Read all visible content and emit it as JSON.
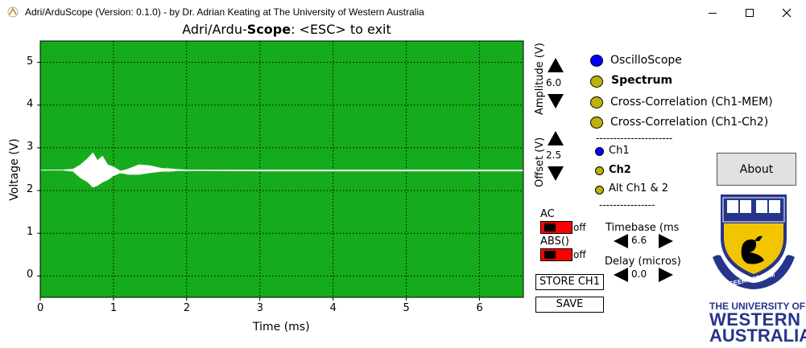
{
  "window": {
    "title": "Adri/ArduScope (Version: 0.1.0) - by Dr. Adrian Keating at The University of Western Australia",
    "minimize_icon": "minimize-icon",
    "maximize_icon": "maximize-icon",
    "close_icon": "close-icon"
  },
  "plot": {
    "title_pre": "Adri/Ardu-",
    "title_bold": "Scope",
    "title_post": ": <ESC> to exit",
    "xlabel": "Time (ms)",
    "ylabel": "Voltage (V)",
    "x_ticks": [
      "0",
      "1",
      "2",
      "3",
      "4",
      "5",
      "6"
    ],
    "y_ticks": [
      "0",
      "1",
      "2",
      "3",
      "4",
      "5"
    ],
    "bg_color": "#16ab1c",
    "trace_color": "#ffffff"
  },
  "chart_data": {
    "type": "line",
    "title": "Adri/Ardu-Scope: <ESC> to exit",
    "xlabel": "Time (ms)",
    "ylabel": "Voltage (V)",
    "xlim": [
      0,
      6.6
    ],
    "ylim": [
      -0.5,
      5.5
    ],
    "grid": true,
    "series": [
      {
        "color": "#ffffff",
        "x": [
          0,
          0.3,
          0.45,
          0.55,
          0.65,
          0.72,
          0.78,
          0.85,
          0.92,
          1.0,
          1.1,
          1.2,
          1.35,
          1.5,
          1.65,
          1.8,
          2.0,
          3.0,
          4.0,
          5.0,
          6.0,
          6.6
        ],
        "y": [
          2.48,
          2.48,
          2.5,
          2.6,
          2.75,
          2.88,
          2.7,
          2.8,
          2.6,
          2.55,
          2.45,
          2.5,
          2.6,
          2.58,
          2.52,
          2.5,
          2.48,
          2.48,
          2.48,
          2.48,
          2.48,
          2.48
        ],
        "y_min": [
          2.48,
          2.48,
          2.45,
          2.3,
          2.2,
          2.08,
          2.12,
          2.2,
          2.25,
          2.35,
          2.42,
          2.38,
          2.38,
          2.42,
          2.45,
          2.46,
          2.47,
          2.46,
          2.46,
          2.46,
          2.46,
          2.46
        ]
      }
    ]
  },
  "controls": {
    "amplitude_label": "Amplitude (V)",
    "amplitude_value": "6.0",
    "offset_label": "Offset (V)",
    "offset_value": "2.5",
    "ac_label": "AC",
    "ac_state": "off",
    "abs_label": "ABS()",
    "abs_state": "off",
    "timebase_label": "Timebase (ms",
    "timebase_value": "6.6",
    "delay_label": "Delay (micros)",
    "delay_value": "0.0",
    "store_button": "STORE CH1",
    "save_button": "SAVE",
    "about_button": "About"
  },
  "modes": [
    {
      "label": "OscilloScope",
      "selected": true,
      "bold": false
    },
    {
      "label": "Spectrum",
      "selected": false,
      "bold": true
    },
    {
      "label": "Cross-Correlation (Ch1-MEM)",
      "selected": false,
      "bold": false
    },
    {
      "label": "Cross-Correlation (Ch1-Ch2)",
      "selected": false,
      "bold": false
    }
  ],
  "separator1": "----------------------",
  "channels": [
    {
      "label": "Ch1",
      "selected": true,
      "bold": false
    },
    {
      "label": "Ch2",
      "selected": false,
      "bold": true
    },
    {
      "label": "Alt Ch1 & 2",
      "selected": false,
      "bold": false
    }
  ],
  "separator2": "----------------",
  "colors": {
    "selected_dot": "#0000ff",
    "unselected_dot": "#bdb20a",
    "toggle_bg": "#ff0000",
    "uwa_blue": "#27348b",
    "uwa_gold": "#f2c500"
  },
  "logo": {
    "motto": "SEEK WISDOM",
    "line1": "THE UNIVERSITY OF",
    "line2": "WESTERN",
    "line3": "AUSTRALIA"
  }
}
